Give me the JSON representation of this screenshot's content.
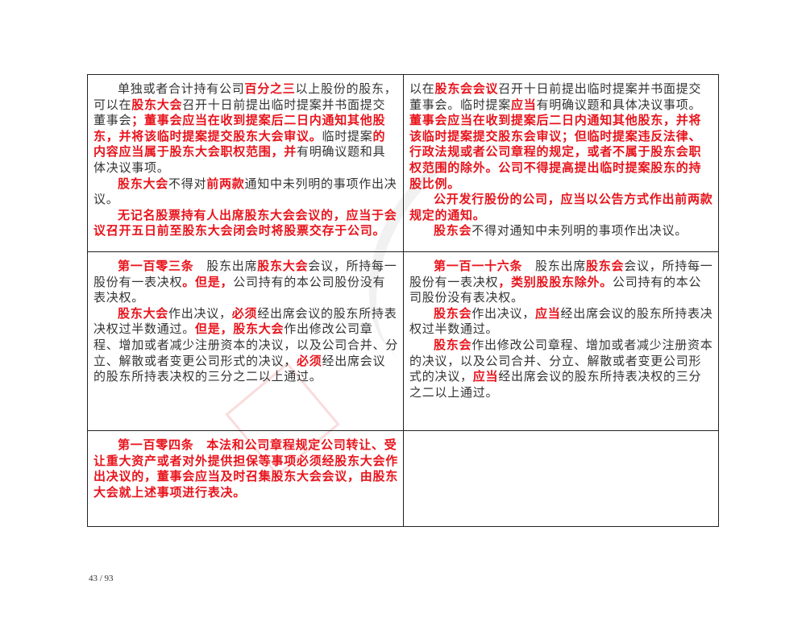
{
  "table": {
    "rows": [
      {
        "left": [
          {
            "indent": true,
            "segments": [
              {
                "t": "单独或者合计持有公司",
                "s": "n"
              },
              {
                "t": "百分之三",
                "s": "r"
              },
              {
                "t": "以上股份的股东，可以在",
                "s": "n"
              },
              {
                "t": "股东大会",
                "s": "r"
              },
              {
                "t": "召开十日前提出临时提案并书面提交董事会",
                "s": "n"
              },
              {
                "t": "；董事会应当在收到提案后二日内通知其他股东，并将该临时提案提交股东大会审议。",
                "s": "r"
              },
              {
                "t": "临时提案",
                "s": "n"
              },
              {
                "t": "的内容应当属于股东大会职权范围，并",
                "s": "r"
              },
              {
                "t": "有明确议题和具体决议事项。",
                "s": "n"
              }
            ]
          },
          {
            "indent": true,
            "segments": [
              {
                "t": "股东大会",
                "s": "r"
              },
              {
                "t": "不得对",
                "s": "n"
              },
              {
                "t": "前两款",
                "s": "r"
              },
              {
                "t": "通知中未列明的事项作出决议。",
                "s": "n"
              }
            ]
          },
          {
            "indent": true,
            "segments": [
              {
                "t": "无记名股票持有人出席股东大会会议的，应当于会议召开五日前至股东大会闭会时将股票交存于公司。",
                "s": "r"
              }
            ]
          }
        ],
        "right": [
          {
            "indent": false,
            "segments": [
              {
                "t": "以在",
                "s": "n"
              },
              {
                "t": "股东会会议",
                "s": "r"
              },
              {
                "t": "召开十日前提出临时提案并书面提交董事会。临时提案",
                "s": "n"
              },
              {
                "t": "应当",
                "s": "r"
              },
              {
                "t": "有明确议题和具体决议事项。",
                "s": "n"
              },
              {
                "t": "董事会应当在收到提案后二日内通知其他股东，并将该临时提案提交股东会审议；但临时提案违反法律、行政法规或者公司章程的规定，或者不属于股东会职权范围的除外。公司不得提高提出临时提案股东的持股比例。",
                "s": "r"
              }
            ]
          },
          {
            "indent": true,
            "segments": [
              {
                "t": "公开发行股份的公司，应当以公告方式作出前两款规定的通知。",
                "s": "r"
              }
            ]
          },
          {
            "indent": true,
            "segments": [
              {
                "t": "股东会",
                "s": "r"
              },
              {
                "t": "不得对通知中未列明的事项作出决议。",
                "s": "n"
              }
            ]
          }
        ]
      },
      {
        "left": [
          {
            "indent": true,
            "segments": [
              {
                "t": "第一百零三条",
                "s": "r"
              },
              {
                "t": "　股东出席",
                "s": "n"
              },
              {
                "t": "股东大会",
                "s": "r"
              },
              {
                "t": "会议，所持每一股份有一表决权",
                "s": "n"
              },
              {
                "t": "。但是，",
                "s": "r"
              },
              {
                "t": "公司持有的本公司股份没有表决权。",
                "s": "n"
              }
            ]
          },
          {
            "indent": true,
            "segments": [
              {
                "t": "股东大会",
                "s": "r"
              },
              {
                "t": "作出决议，",
                "s": "n"
              },
              {
                "t": "必须",
                "s": "r"
              },
              {
                "t": "经出席会议的股东所持表决权过半数通过。",
                "s": "n"
              },
              {
                "t": "但是，股东大会",
                "s": "r"
              },
              {
                "t": "作出修改公司章程、增加或者减少注册资本的决议，以及公司合并、分立、解散或者变更公司形式的决议，",
                "s": "n"
              },
              {
                "t": "必须",
                "s": "r"
              },
              {
                "t": "经出席会议的股东所持表决权的三分之二以上通过。",
                "s": "n"
              }
            ]
          }
        ],
        "right": [
          {
            "indent": true,
            "segments": [
              {
                "t": "第一百一十六条",
                "s": "r"
              },
              {
                "t": "　股东出席",
                "s": "n"
              },
              {
                "t": "股东会",
                "s": "r"
              },
              {
                "t": "会议，所持每一股份有一表决权",
                "s": "n"
              },
              {
                "t": "，类别股股东除外。",
                "s": "r"
              },
              {
                "t": "公司持有的本公司股份没有表决权。",
                "s": "n"
              }
            ]
          },
          {
            "indent": true,
            "segments": [
              {
                "t": "股东会",
                "s": "r"
              },
              {
                "t": "作出决议，",
                "s": "n"
              },
              {
                "t": "应当",
                "s": "r"
              },
              {
                "t": "经出席会议的股东所持表决权过半数通过。",
                "s": "n"
              }
            ]
          },
          {
            "indent": true,
            "segments": [
              {
                "t": "股东会",
                "s": "r"
              },
              {
                "t": "作出修改公司章程、增加或者减少注册资本的决议，以及公司合并、分立、解散或者变更公司形式的决议，",
                "s": "n"
              },
              {
                "t": "应当",
                "s": "r"
              },
              {
                "t": "经出席会议的股东所持表决权的三分之二以上通过。",
                "s": "n"
              }
            ]
          }
        ]
      },
      {
        "left": [
          {
            "indent": true,
            "segments": [
              {
                "t": "第一百零四条　本法和公司章程规定公司转让、受让重大资产或者对外提供担保等事项必须经股东大会作出决议的，董事会应当及时召集股东大会会议，由股东大会就上述事项进行表决。",
                "s": "r"
              }
            ]
          }
        ],
        "right": []
      }
    ]
  },
  "footer": {
    "page_number": "43 / 93"
  },
  "colors": {
    "highlight": "#e8141c",
    "text": "#333333"
  }
}
